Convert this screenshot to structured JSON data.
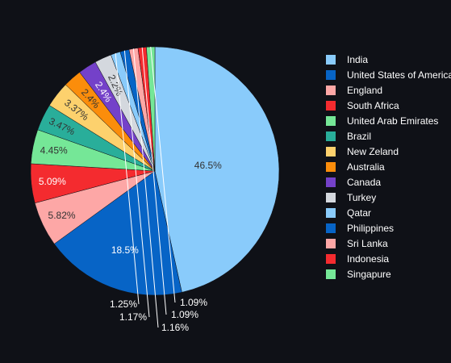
{
  "chart_data": {
    "type": "pie",
    "title": "",
    "labels": [
      "India",
      "United States of America",
      "England",
      "South Africa",
      "United Arab Emirates",
      "Brazil",
      "New Zeland",
      "Australia",
      "Canada",
      "Turkey",
      "Qatar",
      "Philippines",
      "Sri Lanka",
      "Indonesia",
      "Singapure"
    ],
    "values": [
      46.5,
      18.5,
      5.82,
      5.09,
      4.45,
      3.47,
      3.37,
      2.4,
      2.4,
      2.2,
      1.25,
      1.17,
      1.16,
      1.09,
      1.09
    ],
    "value_labels": [
      "46.5%",
      "18.5%",
      "5.82%",
      "5.09%",
      "4.45%",
      "3.47%",
      "3.37%",
      "2.4%",
      "2.4%",
      "2.2%",
      "1.25%",
      "1.17%",
      "1.16%",
      "1.09%",
      "1.09%"
    ],
    "colors": [
      "#89cbfb",
      "#0764c6",
      "#fda7a6",
      "#f42b2f",
      "#75e797",
      "#29ae9a",
      "#fdd16d",
      "#fb8d0b",
      "#7441c9",
      "#d4d8de",
      "#89cbfb",
      "#0764c6",
      "#fda7a6",
      "#f42b2f",
      "#75e797"
    ],
    "label_colors": [
      "#333333",
      "#ffffff",
      "#333333",
      "#ffffff",
      "#333333",
      "#333333",
      "#333333",
      "#333333",
      "#ffffff",
      "#333333",
      "#ffffff",
      "#ffffff",
      "#ffffff",
      "#ffffff",
      "#ffffff"
    ],
    "legend_position": "right",
    "direction": "clockwise",
    "start_angle": "top"
  }
}
